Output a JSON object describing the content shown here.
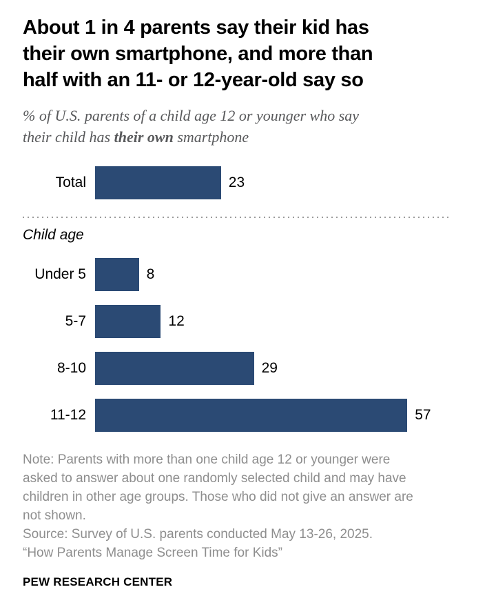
{
  "title_lines": [
    "About 1 in 4 parents say their kid has",
    "their own smartphone, and more than",
    "half with an 11- or 12-year-old say so"
  ],
  "subtitle": {
    "line1": "% of U.S. parents of a child age 12 or younger who say",
    "line2_prefix": "their child has ",
    "line2_bold": "their own",
    "line2_suffix": " smartphone"
  },
  "chart_data": {
    "type": "bar",
    "orientation": "horizontal",
    "title": "About 1 in 4 parents say their kid has their own smartphone, and more than half with an 11- or 12-year-old say so",
    "subtitle": "% of U.S. parents of a child age 12 or younger who say their child has their own smartphone",
    "total": {
      "label": "Total",
      "value": 23
    },
    "group_label": "Child age",
    "categories": [
      "Under 5",
      "5-7",
      "8-10",
      "11-12"
    ],
    "values": [
      8,
      12,
      29,
      57
    ],
    "xlim": [
      0,
      60
    ],
    "grid": false,
    "legend": "none",
    "data_labels": "end-of-bar"
  },
  "notes": {
    "note_lines": [
      "Note: Parents with more than one child age 12 or younger were",
      "asked to answer about one randomly selected child and may have",
      "children in other age groups. Those who did not give an answer are",
      "not shown."
    ],
    "source": "Source: Survey of U.S. parents conducted May 13-26, 2025.",
    "report": "“How Parents Manage Screen Time for Kids”"
  },
  "footer": {
    "brand": "PEW RESEARCH CENTER"
  },
  "colors": {
    "bar": "#2b4a74",
    "title_text": "#000000",
    "subtitle_text": "#58595b",
    "note_text": "#8e8e8e",
    "divider": "#9b9b9b"
  }
}
